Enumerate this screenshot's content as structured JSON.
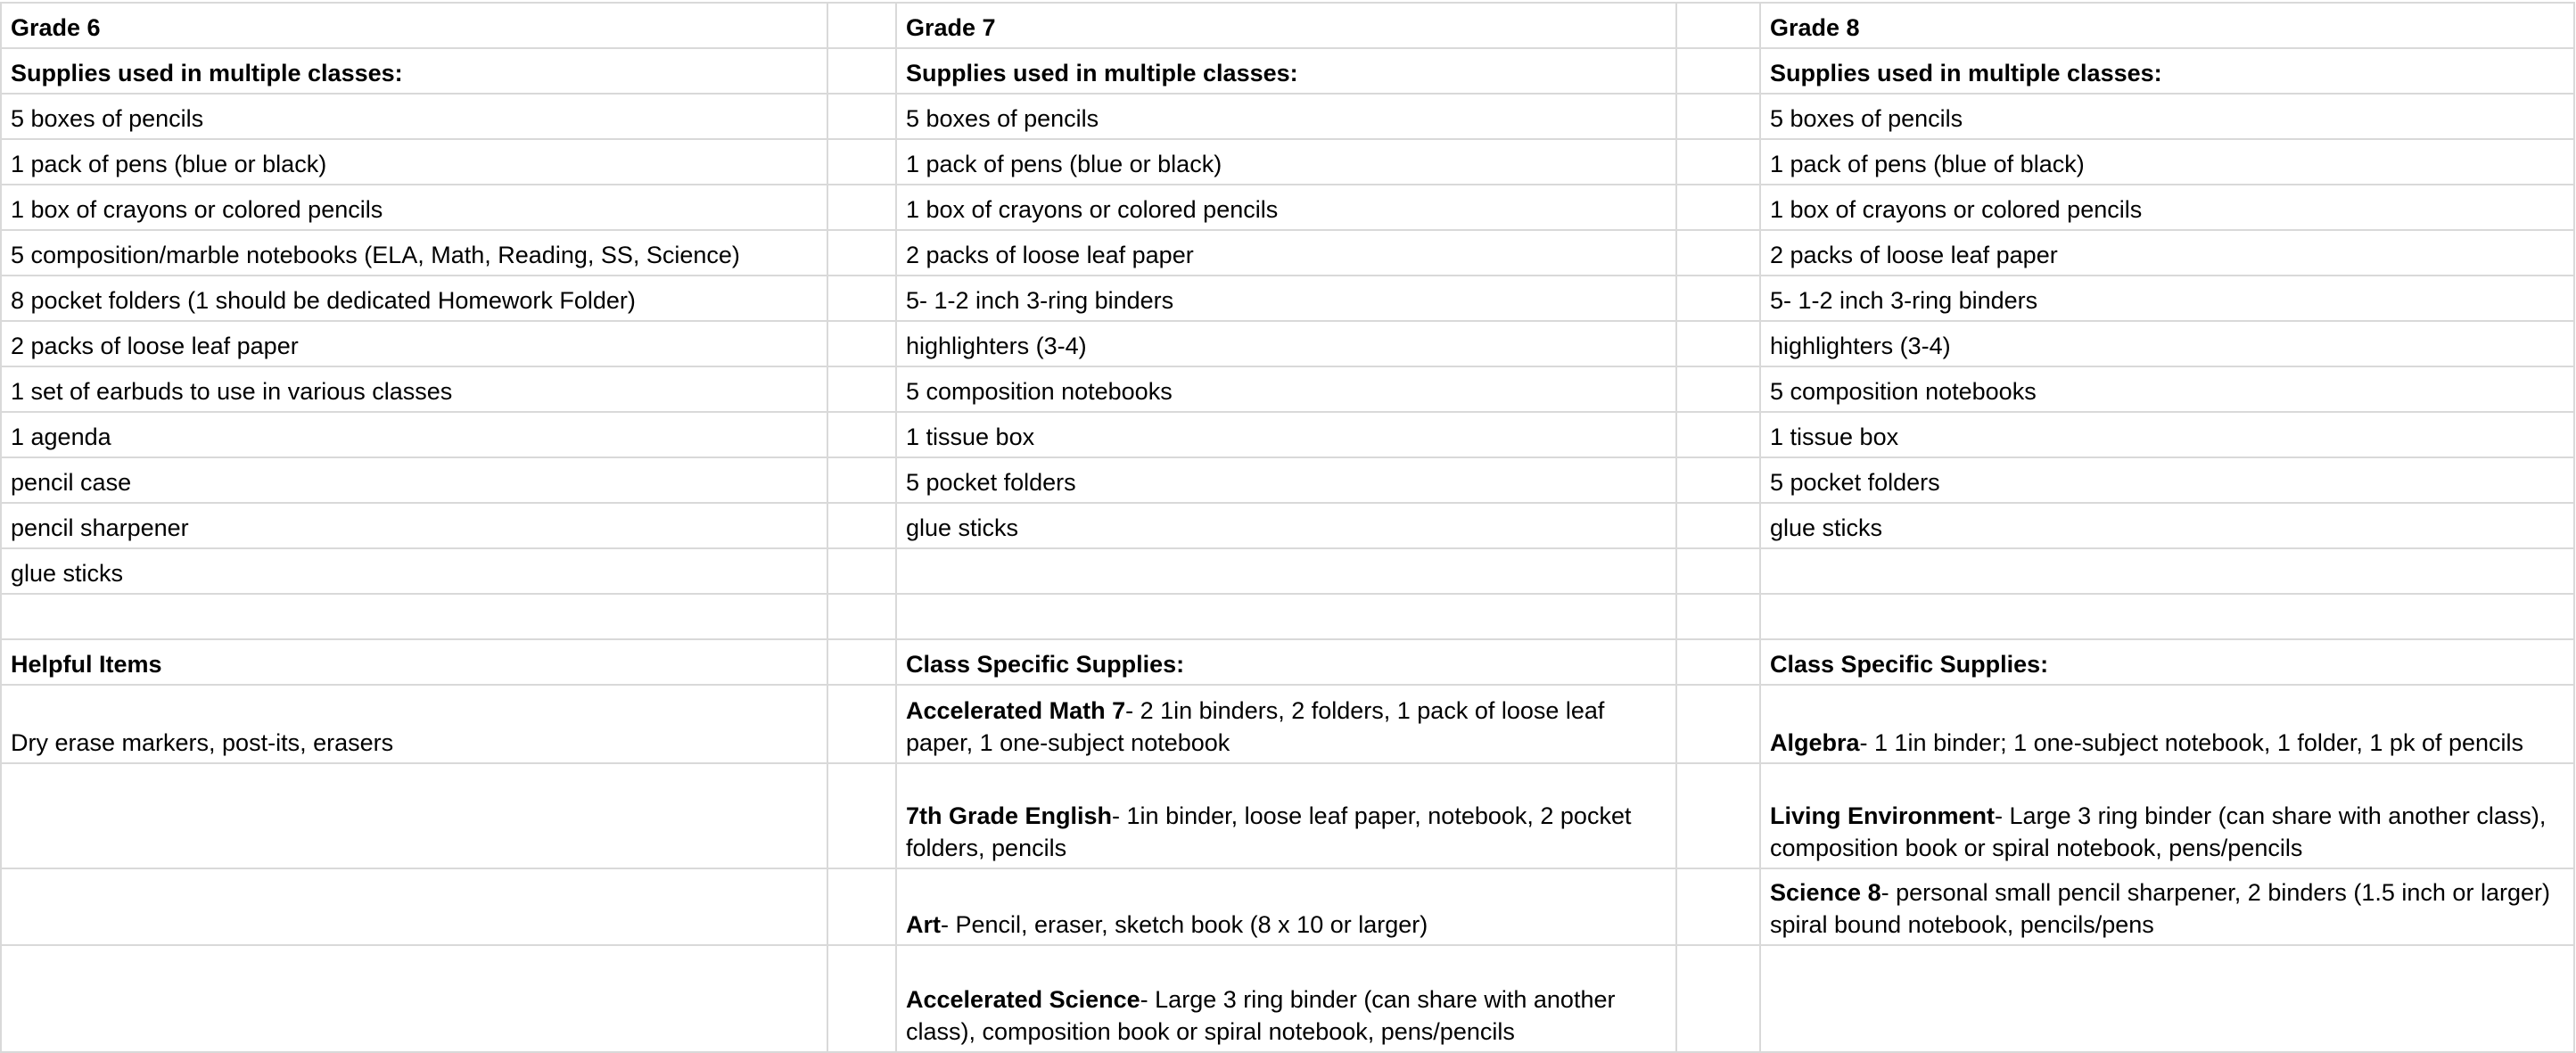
{
  "rows": [
    [
      {
        "b": "Grade 6"
      },
      {},
      {
        "b": "Grade 7"
      },
      {},
      {
        "b": "Grade 8"
      }
    ],
    [
      {
        "b": "Supplies used in multiple classes:"
      },
      {},
      {
        "b": "Supplies used in multiple classes:"
      },
      {},
      {
        "b": "Supplies used in multiple classes:"
      }
    ],
    [
      {
        "t": "5 boxes of pencils"
      },
      {},
      {
        "t": "5 boxes of pencils"
      },
      {},
      {
        "t": "5 boxes of pencils"
      }
    ],
    [
      {
        "t": "1 pack of pens (blue or black)"
      },
      {},
      {
        "t": "1 pack of pens (blue or black)"
      },
      {},
      {
        "t": "1 pack of pens (blue of black)"
      }
    ],
    [
      {
        "t": "1 box of crayons or colored pencils"
      },
      {},
      {
        "t": "1 box of crayons or colored pencils"
      },
      {},
      {
        "t": "1 box of crayons or colored pencils"
      }
    ],
    [
      {
        "t": "5 composition/marble notebooks (ELA, Math, Reading, SS, Science)"
      },
      {},
      {
        "t": "2 packs of loose leaf paper"
      },
      {},
      {
        "t": "2 packs of loose leaf paper"
      }
    ],
    [
      {
        "t": "8 pocket folders (1 should be dedicated Homework Folder)"
      },
      {},
      {
        "t": "5- 1-2 inch 3-ring binders"
      },
      {},
      {
        "t": "5- 1-2 inch 3-ring binders"
      }
    ],
    [
      {
        "t": "2 packs of loose leaf paper"
      },
      {},
      {
        "t": "highlighters (3-4)"
      },
      {},
      {
        "t": "highlighters (3-4)"
      }
    ],
    [
      {
        "t": "1 set of earbuds to use in various classes"
      },
      {},
      {
        "t": "5 composition notebooks"
      },
      {},
      {
        "t": "5 composition notebooks"
      }
    ],
    [
      {
        "t": "1 agenda"
      },
      {},
      {
        "t": "1 tissue box"
      },
      {},
      {
        "t": "1 tissue box"
      }
    ],
    [
      {
        "t": "pencil case"
      },
      {},
      {
        "t": "5 pocket folders"
      },
      {},
      {
        "t": "5 pocket folders"
      }
    ],
    [
      {
        "t": "pencil sharpener"
      },
      {},
      {
        "t": "glue sticks"
      },
      {},
      {
        "t": "glue sticks"
      }
    ],
    [
      {
        "t": "glue sticks"
      },
      {},
      {},
      {},
      {}
    ],
    [
      {},
      {},
      {},
      {},
      {}
    ],
    [
      {
        "b": "Helpful Items"
      },
      {},
      {
        "b": "Class Specific Supplies:"
      },
      {},
      {
        "b": "Class Specific Supplies:"
      }
    ],
    [
      {
        "t": "Dry erase markers, post-its, erasers"
      },
      {},
      {
        "b": "Accelerated Math 7",
        "t": "- 2 1in binders, 2 folders, 1 pack of loose leaf paper, 1 one-subject notebook"
      },
      {},
      {
        "b": "Algebra",
        "t": "- 1 1in binder; 1 one-subject notebook, 1 folder, 1 pk of pencils"
      }
    ],
    [
      {},
      {},
      {
        "b": "7th Grade English",
        "t": "- 1in binder, loose leaf paper, notebook, 2 pocket folders, pencils"
      },
      {},
      {
        "b": "Living Environment",
        "t": "- Large 3 ring binder (can share with another class), composition book or spiral notebook, pens/pencils"
      }
    ],
    [
      {},
      {},
      {
        "b": "Art",
        "t": "- Pencil, eraser, sketch book (8 x 10 or larger)"
      },
      {},
      {
        "b": "Science 8",
        "t": "- personal small pencil sharpener, 2 binders (1.5 inch or larger) spiral bound notebook, pencils/pens"
      }
    ],
    [
      {},
      {},
      {
        "b": "Accelerated Science",
        "t": "- Large 3 ring binder (can share with another class), composition book or spiral notebook, pens/pencils"
      },
      {},
      {}
    ]
  ],
  "colors": {
    "grid": "#d9d9d9",
    "text": "#000000"
  }
}
